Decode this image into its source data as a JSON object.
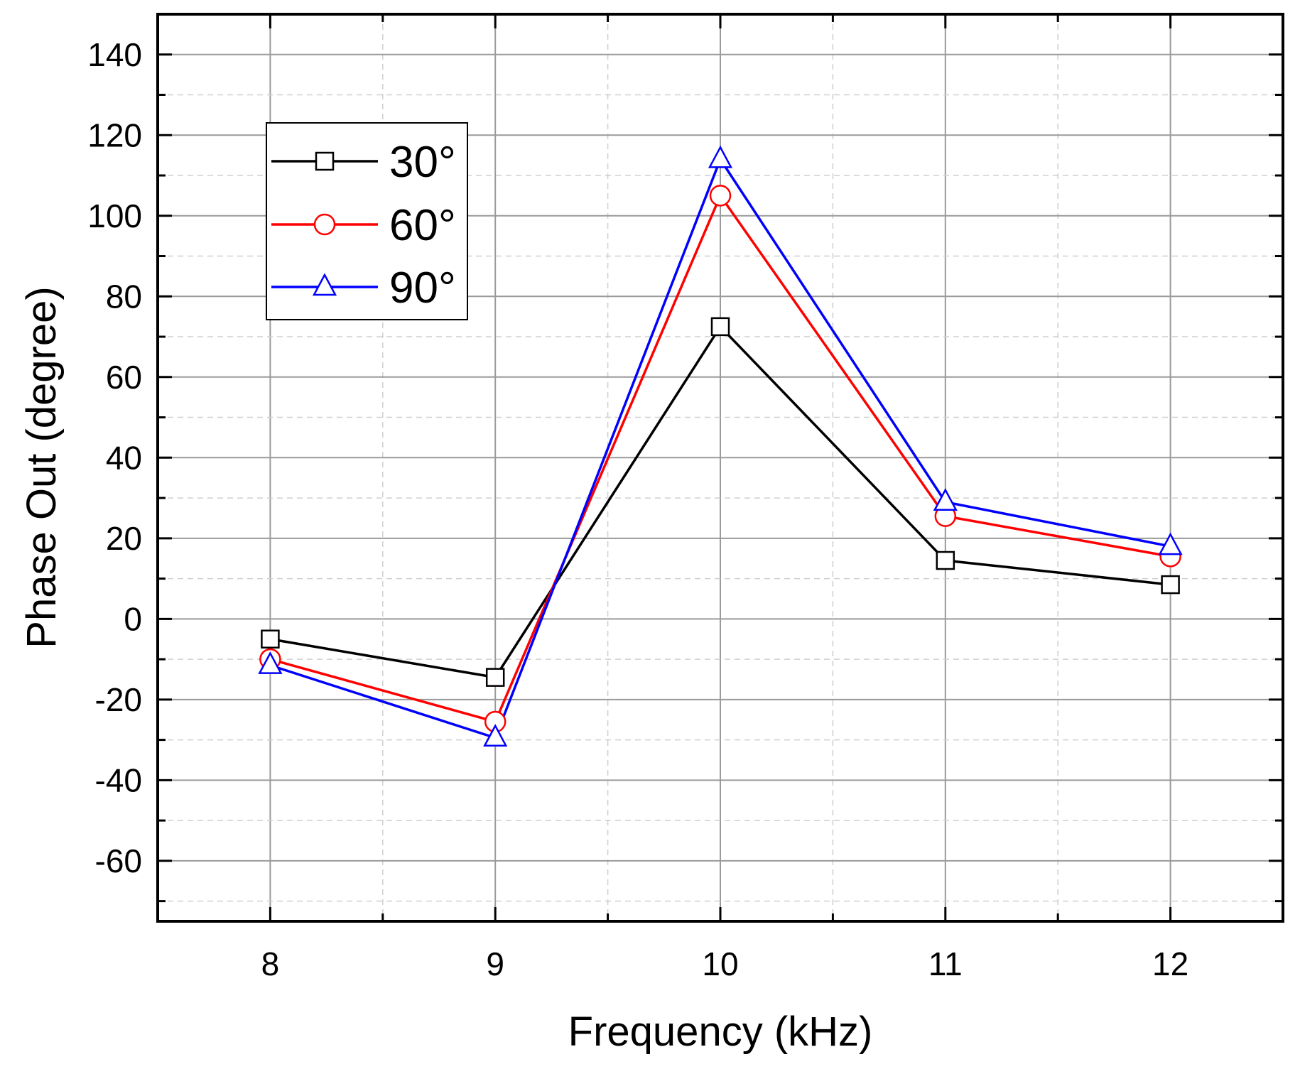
{
  "chart_data": {
    "type": "line",
    "title": "",
    "xlabel": "Frequency (kHz)",
    "ylabel": "Phase Out (degree)",
    "x": [
      8,
      9,
      10,
      11,
      12
    ],
    "xlim": [
      7.5,
      12.5
    ],
    "ylim": [
      -75,
      150
    ],
    "xticks": [
      8,
      9,
      10,
      11,
      12
    ],
    "xtick_labels": [
      "8",
      "9",
      "10",
      "11",
      "12"
    ],
    "yticks": [
      -60,
      -40,
      -20,
      0,
      20,
      40,
      60,
      80,
      100,
      120,
      140
    ],
    "ytick_labels": [
      "-60",
      "-40",
      "-20",
      "0",
      "20",
      "40",
      "60",
      "80",
      "100",
      "120",
      "140"
    ],
    "grid": true,
    "legend_position": "top-left",
    "series": [
      {
        "name": "30°",
        "color": "#000000",
        "marker": "square",
        "values": [
          -5,
          -14.5,
          72.5,
          14.5,
          8.5
        ]
      },
      {
        "name": "60°",
        "color": "#ff0000",
        "marker": "circle",
        "values": [
          -10,
          -25.5,
          105,
          25.5,
          15.5
        ]
      },
      {
        "name": "90°",
        "color": "#0000ff",
        "marker": "triangle",
        "values": [
          -11.5,
          -29.5,
          114,
          29,
          18
        ]
      }
    ]
  }
}
